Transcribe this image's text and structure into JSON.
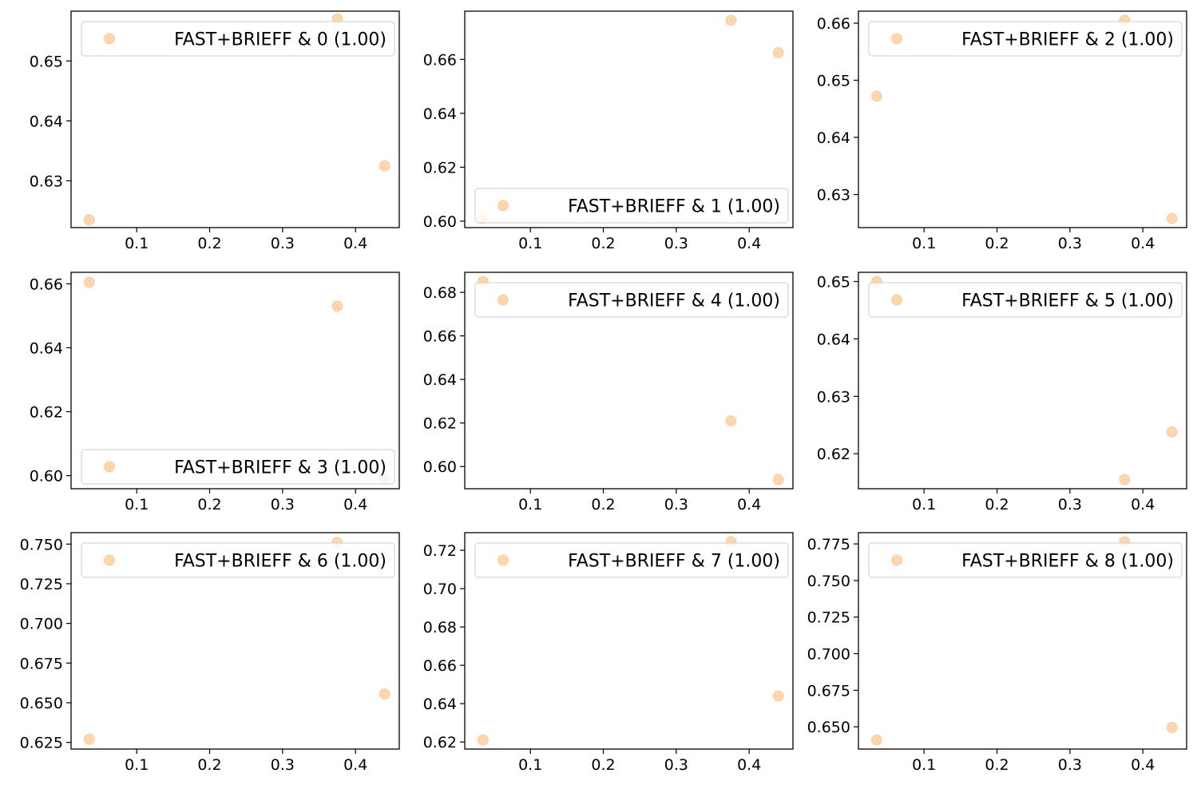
{
  "colors": {
    "marker_fill": "#ffbb78",
    "marker_stroke": "#ffbb78",
    "axis": "#000000",
    "legend_border": "#cccccc",
    "background": "#ffffff"
  },
  "chart_data": [
    {
      "type": "scatter",
      "legend": {
        "label": "FAST+BRIEFF & 0 (1.00)",
        "placement": "upper right"
      },
      "x": [
        0.035,
        0.375,
        0.44
      ],
      "y": [
        0.6235,
        0.657,
        0.6325
      ],
      "xlim": [
        0.01,
        0.46
      ],
      "ylim": [
        0.6222,
        0.6583
      ],
      "xticks": [
        0.1,
        0.2,
        0.3,
        0.4
      ],
      "xtick_labels": [
        "0.1",
        "0.2",
        "0.3",
        "0.4"
      ],
      "yticks": [
        0.63,
        0.64,
        0.65
      ],
      "ytick_labels": [
        "0.63",
        "0.64",
        "0.65"
      ],
      "grid": false
    },
    {
      "type": "scatter",
      "legend": {
        "label": "FAST+BRIEFF & 1 (1.00)",
        "placement": "lower right"
      },
      "x": [
        0.035,
        0.375,
        0.44
      ],
      "y": [
        0.601,
        0.6745,
        0.6625
      ],
      "xlim": [
        0.01,
        0.46
      ],
      "ylim": [
        0.5976,
        0.6779
      ],
      "xticks": [
        0.1,
        0.2,
        0.3,
        0.4
      ],
      "xtick_labels": [
        "0.1",
        "0.2",
        "0.3",
        "0.4"
      ],
      "yticks": [
        0.6,
        0.62,
        0.64,
        0.66
      ],
      "ytick_labels": [
        "0.60",
        "0.62",
        "0.64",
        "0.66"
      ],
      "grid": false
    },
    {
      "type": "scatter",
      "legend": {
        "label": "FAST+BRIEFF & 2 (1.00)",
        "placement": "upper right"
      },
      "x": [
        0.035,
        0.375,
        0.44
      ],
      "y": [
        0.6472,
        0.6605,
        0.6258
      ],
      "xlim": [
        0.01,
        0.46
      ],
      "ylim": [
        0.6242,
        0.6621
      ],
      "xticks": [
        0.1,
        0.2,
        0.3,
        0.4
      ],
      "xtick_labels": [
        "0.1",
        "0.2",
        "0.3",
        "0.4"
      ],
      "yticks": [
        0.63,
        0.64,
        0.65,
        0.66
      ],
      "ytick_labels": [
        "0.63",
        "0.64",
        "0.65",
        "0.66"
      ],
      "grid": false
    },
    {
      "type": "scatter",
      "legend": {
        "label": "FAST+BRIEFF & 3 (1.00)",
        "placement": "lower right"
      },
      "x": [
        0.035,
        0.375,
        0.44
      ],
      "y": [
        0.6605,
        0.653,
        0.599
      ],
      "xlim": [
        0.01,
        0.46
      ],
      "ylim": [
        0.5959,
        0.6636
      ],
      "xticks": [
        0.1,
        0.2,
        0.3,
        0.4
      ],
      "xtick_labels": [
        "0.1",
        "0.2",
        "0.3",
        "0.4"
      ],
      "yticks": [
        0.6,
        0.62,
        0.64,
        0.66
      ],
      "ytick_labels": [
        "0.60",
        "0.62",
        "0.64",
        "0.66"
      ],
      "grid": false
    },
    {
      "type": "scatter",
      "legend": {
        "label": "FAST+BRIEFF & 4 (1.00)",
        "placement": "upper right"
      },
      "x": [
        0.035,
        0.375,
        0.44
      ],
      "y": [
        0.685,
        0.621,
        0.594
      ],
      "xlim": [
        0.01,
        0.46
      ],
      "ylim": [
        0.5898,
        0.6892
      ],
      "xticks": [
        0.1,
        0.2,
        0.3,
        0.4
      ],
      "xtick_labels": [
        "0.1",
        "0.2",
        "0.3",
        "0.4"
      ],
      "yticks": [
        0.6,
        0.62,
        0.64,
        0.66,
        0.68
      ],
      "ytick_labels": [
        "0.60",
        "0.62",
        "0.64",
        "0.66",
        "0.68"
      ],
      "grid": false
    },
    {
      "type": "scatter",
      "legend": {
        "label": "FAST+BRIEFF & 5 (1.00)",
        "placement": "upper right"
      },
      "x": [
        0.035,
        0.375,
        0.44
      ],
      "y": [
        0.65,
        0.6155,
        0.6238
      ],
      "xlim": [
        0.01,
        0.46
      ],
      "ylim": [
        0.6139,
        0.6516
      ],
      "xticks": [
        0.1,
        0.2,
        0.3,
        0.4
      ],
      "xtick_labels": [
        "0.1",
        "0.2",
        "0.3",
        "0.4"
      ],
      "yticks": [
        0.62,
        0.63,
        0.64,
        0.65
      ],
      "ytick_labels": [
        "0.62",
        "0.63",
        "0.64",
        "0.65"
      ],
      "grid": false
    },
    {
      "type": "scatter",
      "legend": {
        "label": "FAST+BRIEFF & 6 (1.00)",
        "placement": "upper right"
      },
      "x": [
        0.035,
        0.375,
        0.44
      ],
      "y": [
        0.627,
        0.751,
        0.6555
      ],
      "xlim": [
        0.01,
        0.46
      ],
      "ylim": [
        0.6208,
        0.7572
      ],
      "xticks": [
        0.1,
        0.2,
        0.3,
        0.4
      ],
      "xtick_labels": [
        "0.1",
        "0.2",
        "0.3",
        "0.4"
      ],
      "yticks": [
        0.625,
        0.65,
        0.675,
        0.7,
        0.725,
        0.75
      ],
      "ytick_labels": [
        "0.625",
        "0.650",
        "0.675",
        "0.700",
        "0.725",
        "0.750"
      ],
      "grid": false
    },
    {
      "type": "scatter",
      "legend": {
        "label": "FAST+BRIEFF & 7 (1.00)",
        "placement": "upper right"
      },
      "x": [
        0.035,
        0.375,
        0.44
      ],
      "y": [
        0.621,
        0.7245,
        0.644
      ],
      "xlim": [
        0.01,
        0.46
      ],
      "ylim": [
        0.6163,
        0.7292
      ],
      "xticks": [
        0.1,
        0.2,
        0.3,
        0.4
      ],
      "xtick_labels": [
        "0.1",
        "0.2",
        "0.3",
        "0.4"
      ],
      "yticks": [
        0.62,
        0.64,
        0.66,
        0.68,
        0.7,
        0.72
      ],
      "ytick_labels": [
        "0.62",
        "0.64",
        "0.66",
        "0.68",
        "0.70",
        "0.72"
      ],
      "grid": false
    },
    {
      "type": "scatter",
      "legend": {
        "label": "FAST+BRIEFF & 8 (1.00)",
        "placement": "upper right"
      },
      "x": [
        0.035,
        0.375,
        0.44
      ],
      "y": [
        0.641,
        0.7765,
        0.6495
      ],
      "xlim": [
        0.01,
        0.46
      ],
      "ylim": [
        0.6348,
        0.7827
      ],
      "xticks": [
        0.1,
        0.2,
        0.3,
        0.4
      ],
      "xtick_labels": [
        "0.1",
        "0.2",
        "0.3",
        "0.4"
      ],
      "yticks": [
        0.65,
        0.675,
        0.7,
        0.725,
        0.75,
        0.775
      ],
      "ytick_labels": [
        "0.650",
        "0.675",
        "0.700",
        "0.725",
        "0.750",
        "0.775"
      ],
      "grid": false
    }
  ]
}
